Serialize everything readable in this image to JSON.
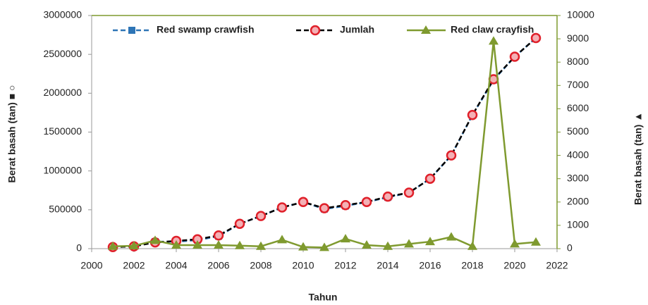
{
  "chart_data": {
    "type": "line",
    "x_label": "Tahun",
    "y_label": "Berat basah (tan) ■ ○",
    "y2_label": "Berat basah (tan) ▲",
    "x": [
      2001,
      2002,
      2003,
      2004,
      2005,
      2006,
      2007,
      2008,
      2009,
      2010,
      2011,
      2012,
      2013,
      2014,
      2015,
      2016,
      2017,
      2018,
      2019,
      2020,
      2021
    ],
    "series": [
      {
        "name": "Red swamp crawfish",
        "color": "#2e75b6",
        "marker": "square",
        "dashed": true,
        "axis": "y",
        "values": [
          20000,
          30000,
          90000,
          90000,
          110000,
          160000,
          320000,
          420000,
          530000,
          600000,
          510000,
          550000,
          600000,
          660000,
          720000,
          900000,
          1200000,
          1720000,
          2170000,
          2470000,
          2710000
        ]
      },
      {
        "name": "Jumlah",
        "color": "#e0202a",
        "marker": "circle",
        "dashed": true,
        "line_color": "#000000",
        "axis": "y",
        "values": [
          20000,
          30000,
          80000,
          100000,
          120000,
          170000,
          320000,
          420000,
          530000,
          600000,
          520000,
          560000,
          600000,
          670000,
          720000,
          900000,
          1200000,
          1720000,
          2180000,
          2470000,
          2710000
        ]
      },
      {
        "name": "Red claw crayfish",
        "color": "#7f9a2f",
        "marker": "triangle",
        "dashed": false,
        "axis": "y2",
        "values": [
          100,
          120,
          350,
          150,
          150,
          150,
          130,
          100,
          380,
          70,
          50,
          420,
          150,
          100,
          200,
          300,
          500,
          100,
          8900,
          200,
          280
        ]
      }
    ],
    "xlim": [
      2000,
      2022
    ],
    "xticks": [
      2000,
      2002,
      2004,
      2006,
      2008,
      2010,
      2012,
      2014,
      2016,
      2018,
      2020,
      2022
    ],
    "ylim": [
      0,
      3000000
    ],
    "yticks": [
      0,
      500000,
      1000000,
      1500000,
      2000000,
      2500000,
      3000000
    ],
    "y2lim": [
      0,
      10000
    ],
    "y2ticks": [
      0,
      1000,
      2000,
      3000,
      4000,
      5000,
      6000,
      7000,
      8000,
      9000,
      10000
    ],
    "legend": "top"
  }
}
